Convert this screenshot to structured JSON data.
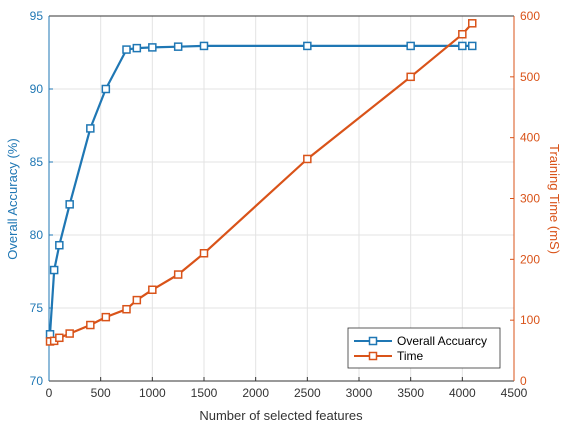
{
  "chart_data": {
    "type": "line",
    "xlabel": "Number of selected features",
    "ylabel_left": "Overall Accuracy (%)",
    "ylabel_right": "Training Time (mS)",
    "xlim": [
      0,
      4500
    ],
    "ylim_left": [
      70,
      95
    ],
    "ylim_right": [
      0,
      600
    ],
    "x_ticks": [
      0,
      500,
      1000,
      1500,
      2000,
      2500,
      3000,
      3500,
      4000,
      4500
    ],
    "y_ticks_left": [
      70,
      75,
      80,
      85,
      90,
      95
    ],
    "y_ticks_right": [
      0,
      100,
      200,
      300,
      400,
      500,
      600
    ],
    "grid": true,
    "legend_position": "bottom-right",
    "colors": {
      "accuracy": "#1F77B4",
      "time": "#D95319",
      "grid": "#e3e3e3",
      "axis": "#333333"
    },
    "series": [
      {
        "name": "Overall Accuarcy",
        "axis": "left",
        "marker": "square",
        "x": [
          10,
          50,
          100,
          200,
          400,
          550,
          750,
          850,
          1000,
          1250,
          1500,
          2500,
          3500,
          4000,
          4096
        ],
        "y": [
          73.2,
          77.6,
          79.3,
          82.1,
          87.3,
          90.0,
          92.7,
          92.8,
          92.85,
          92.9,
          92.95,
          92.95,
          92.95,
          92.95,
          92.95
        ]
      },
      {
        "name": "Time",
        "axis": "right",
        "marker": "square",
        "x": [
          10,
          50,
          100,
          200,
          400,
          550,
          750,
          850,
          1000,
          1250,
          1500,
          2500,
          3500,
          4000,
          4096
        ],
        "y": [
          65,
          66,
          71,
          78,
          92,
          105,
          118,
          133,
          150,
          175,
          210,
          365,
          500,
          570,
          588
        ]
      }
    ]
  }
}
